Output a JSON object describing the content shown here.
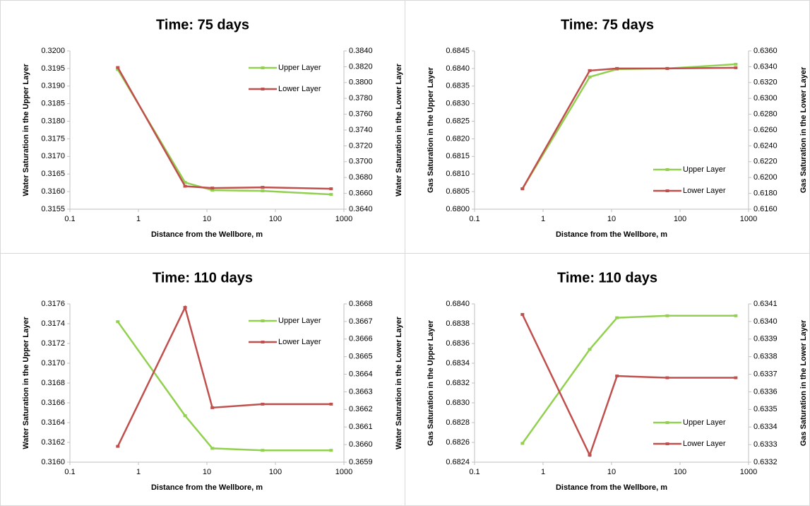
{
  "chart_data": [
    {
      "type": "line",
      "title": "Time: 75 days",
      "xlabel": "Distance  from the Wellbore, m",
      "ylabel": "Water Saturation  in the Upper Layer",
      "y2label": "Water Saturation  in the Lower Layer",
      "xscale": "log",
      "xlim": [
        0.1,
        1000
      ],
      "xticks": [
        0.1,
        1,
        10,
        100,
        1000
      ],
      "legend": "upper right",
      "ylim": [
        0.3155,
        0.32
      ],
      "yticks": [
        0.3155,
        {
          "value": 0.316,
          "label": "0.3160"
        },
        0.3165,
        {
          "value": 0.317,
          "label": "0.3170"
        },
        0.3175,
        {
          "value": 0.318,
          "label": "0.3180"
        },
        0.3185,
        {
          "value": 0.319,
          "label": "0.3190"
        },
        0.3195,
        {
          "value": 0.32,
          "label": "0.3200"
        }
      ],
      "y2lim": [
        0.364,
        0.384
      ],
      "y2ticks": [
        {
          "value": 0.364,
          "label": "0.3640"
        },
        {
          "value": 0.366,
          "label": "0.3660"
        },
        {
          "value": 0.368,
          "label": "0.3680"
        },
        {
          "value": 0.37,
          "label": "0.3700"
        },
        {
          "value": 0.372,
          "label": "0.3720"
        },
        {
          "value": 0.374,
          "label": "0.3740"
        },
        {
          "value": 0.376,
          "label": "0.3760"
        },
        {
          "value": 0.378,
          "label": "0.3780"
        },
        {
          "value": 0.38,
          "label": "0.3800"
        },
        {
          "value": 0.382,
          "label": "0.3820"
        },
        {
          "value": 0.384,
          "label": "0.3840"
        }
      ],
      "x": [
        0.5,
        4.8,
        12,
        65,
        650
      ],
      "series": [
        {
          "name": "Upper Layer",
          "color": "#92d050",
          "values": [
            0.31947,
            0.31626,
            0.31604,
            0.31602,
            0.31592
          ]
        },
        {
          "name": "Lower Layer",
          "color": "#c0504d",
          "axis": "y2",
          "values": [
            0.3819,
            0.3669,
            0.36667,
            0.36676,
            0.36658
          ]
        }
      ]
    },
    {
      "type": "line",
      "title": "Time: 75 days",
      "xlabel": "Distance  from the Wellbore, m",
      "ylabel": "Gas Saturation  in the Upper Layer",
      "y2label": "Gas Saturation  in the Lower Layer",
      "xscale": "log",
      "xlim": [
        0.1,
        1000
      ],
      "xticks": [
        0.1,
        1,
        10,
        100,
        1000
      ],
      "legend": "lower right",
      "ylim": [
        0.68,
        0.6845
      ],
      "yticks": [
        {
          "value": 0.68,
          "label": "0.6800"
        },
        0.6805,
        {
          "value": 0.681,
          "label": "0.6810"
        },
        0.6815,
        {
          "value": 0.682,
          "label": "0.6820"
        },
        0.6825,
        {
          "value": 0.683,
          "label": "0.6830"
        },
        0.6835,
        {
          "value": 0.684,
          "label": "0.6840"
        },
        0.6845
      ],
      "y2lim": [
        0.616,
        0.636
      ],
      "y2ticks": [
        {
          "value": 0.616,
          "label": "0.6160"
        },
        {
          "value": 0.618,
          "label": "0.6180"
        },
        {
          "value": 0.62,
          "label": "0.6200"
        },
        {
          "value": 0.622,
          "label": "0.6220"
        },
        {
          "value": 0.624,
          "label": "0.6240"
        },
        {
          "value": 0.626,
          "label": "0.6260"
        },
        {
          "value": 0.628,
          "label": "0.6280"
        },
        {
          "value": 0.63,
          "label": "0.6300"
        },
        {
          "value": 0.632,
          "label": "0.6320"
        },
        {
          "value": 0.634,
          "label": "0.6340"
        },
        {
          "value": 0.636,
          "label": "0.6360"
        }
      ],
      "x": [
        0.5,
        4.8,
        12,
        65,
        650
      ],
      "series": [
        {
          "name": "Upper Layer",
          "color": "#92d050",
          "values": [
            0.68058,
            0.68376,
            0.68398,
            0.684,
            0.68412
          ]
        },
        {
          "name": "Lower Layer",
          "color": "#c0504d",
          "axis": "y2",
          "values": [
            0.61858,
            0.63351,
            0.63378,
            0.63378,
            0.63387
          ]
        }
      ]
    },
    {
      "type": "line",
      "title": "Time: 110 days",
      "xlabel": "Distance  from the Wellbore, m",
      "ylabel": "Water Saturation  in the Upper Layer",
      "y2label": "Water Saturation  in the Lower Layer",
      "xscale": "log",
      "xlim": [
        0.1,
        1000
      ],
      "xticks": [
        0.1,
        1,
        10,
        100,
        1000
      ],
      "legend": "upper right",
      "ylim": [
        0.316,
        0.3176
      ],
      "yticks": [
        {
          "value": 0.316,
          "label": "0.3160"
        },
        0.3162,
        0.3164,
        0.3166,
        0.3168,
        {
          "value": 0.317,
          "label": "0.3170"
        },
        0.3172,
        0.3174,
        0.3176
      ],
      "y2lim": [
        0.3659,
        0.3668
      ],
      "y2ticks": [
        0.3659,
        {
          "value": 0.366,
          "label": "0.3660"
        },
        0.3661,
        0.3662,
        0.3663,
        0.3664,
        0.3665,
        0.3666,
        0.3667,
        0.3668
      ],
      "x": [
        0.5,
        4.8,
        12,
        65,
        650
      ],
      "series": [
        {
          "name": "Upper Layer",
          "color": "#92d050",
          "values": [
            0.31742,
            0.31647,
            0.31614,
            0.31612,
            0.31612
          ]
        },
        {
          "name": "Lower Layer",
          "color": "#c0504d",
          "axis": "y2",
          "values": [
            0.36599,
            0.36678,
            0.36621,
            0.36623,
            0.36623
          ]
        }
      ]
    },
    {
      "type": "line",
      "title": "Time: 110 days",
      "xlabel": "Distance  from the Wellbore, m",
      "ylabel": "Gas Saturation  in the Upper Layer",
      "y2label": "Gas Saturation  in the Lower Layer",
      "xscale": "log",
      "xlim": [
        0.1,
        1000
      ],
      "xticks": [
        0.1,
        1,
        10,
        100,
        1000
      ],
      "legend": "lower right",
      "ylim": [
        0.6824,
        0.684
      ],
      "yticks": [
        0.6824,
        0.6826,
        0.6828,
        {
          "value": 0.683,
          "label": "0.6830"
        },
        0.6832,
        0.6834,
        0.6836,
        0.6838,
        {
          "value": 0.684,
          "label": "0.6840"
        }
      ],
      "y2lim": [
        0.6332,
        0.6341
      ],
      "y2ticks": [
        0.6332,
        0.6333,
        0.6334,
        0.6335,
        0.6336,
        0.6337,
        0.6338,
        0.6339,
        {
          "value": 0.634,
          "label": "0.6340"
        },
        0.6341
      ],
      "x": [
        0.5,
        4.8,
        12,
        65,
        650
      ],
      "series": [
        {
          "name": "Upper Layer",
          "color": "#92d050",
          "values": [
            0.68259,
            0.68354,
            0.68386,
            0.68388,
            0.68388
          ]
        },
        {
          "name": "Lower Layer",
          "color": "#c0504d",
          "axis": "y2",
          "values": [
            0.63404,
            0.63324,
            0.63369,
            0.63368,
            0.63368
          ]
        }
      ]
    }
  ]
}
